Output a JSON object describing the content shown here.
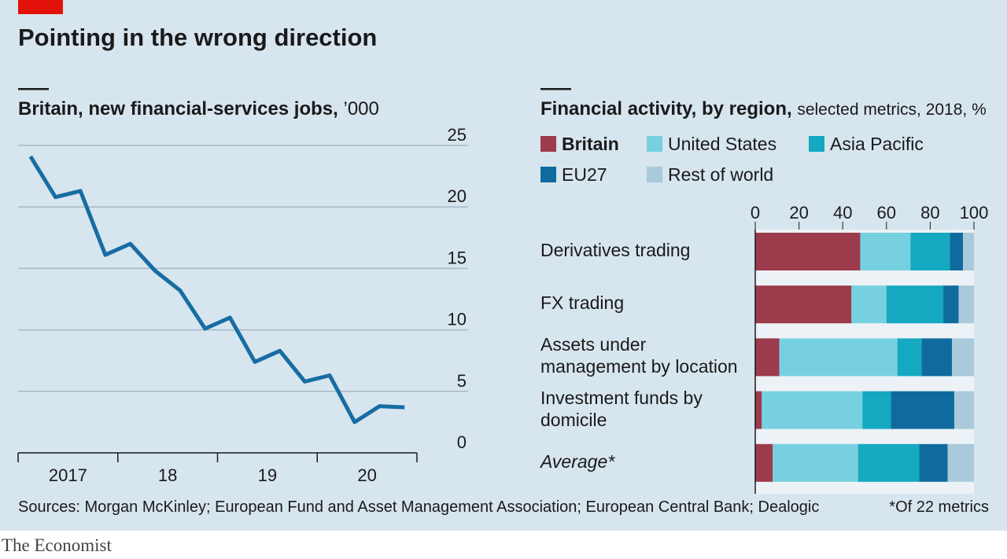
{
  "title": "Pointing in the wrong direction",
  "source": "Sources: Morgan McKinley; European Fund and Asset Management Association; European Central Bank; Dealogic",
  "footnote": "*Of 22 metrics",
  "brand": "The Economist",
  "chart_data": [
    {
      "type": "line",
      "title": "Britain, new financial-services jobs,",
      "subtitle": "’000",
      "categories": [
        "2017",
        null,
        null,
        null,
        "18",
        null,
        null,
        null,
        "19",
        null,
        null,
        null,
        "20",
        null,
        null,
        null
      ],
      "values": [
        24.1,
        20.8,
        21.3,
        16.1,
        17.0,
        14.8,
        13.2,
        10.1,
        11.0,
        7.4,
        8.3,
        5.8,
        6.3,
        2.5,
        3.8,
        3.7
      ],
      "color": "#176da3",
      "ylim": [
        0,
        25
      ],
      "yticks": [
        0,
        5,
        10,
        15,
        20,
        25
      ],
      "grid": true
    },
    {
      "type": "bar",
      "orientation": "horizontal",
      "stacked": true,
      "title": "Financial activity, by region,",
      "subtitle": "selected metrics, 2018, %",
      "categories": [
        "Derivatives trading",
        "FX trading",
        "Assets under management by location",
        "Investment funds by domicile",
        "Average*"
      ],
      "series": [
        {
          "name": "Britain",
          "color": "#9b3b4c",
          "values": [
            48,
            44,
            11,
            3,
            8
          ]
        },
        {
          "name": "United States",
          "color": "#77d0df",
          "values": [
            23,
            16,
            54,
            46,
            39
          ]
        },
        {
          "name": "Asia Pacific",
          "color": "#14a8c1",
          "values": [
            18,
            26,
            11,
            13,
            28
          ]
        },
        {
          "name": "EU27",
          "color": "#0f6b9e",
          "values": [
            6,
            7,
            14,
            29,
            13
          ]
        },
        {
          "name": "Rest of world",
          "color": "#a9cadb",
          "values": [
            5,
            7,
            10,
            9,
            12
          ]
        }
      ],
      "xlim": [
        0,
        100
      ],
      "xticks": [
        0,
        20,
        40,
        60,
        80,
        100
      ]
    }
  ]
}
